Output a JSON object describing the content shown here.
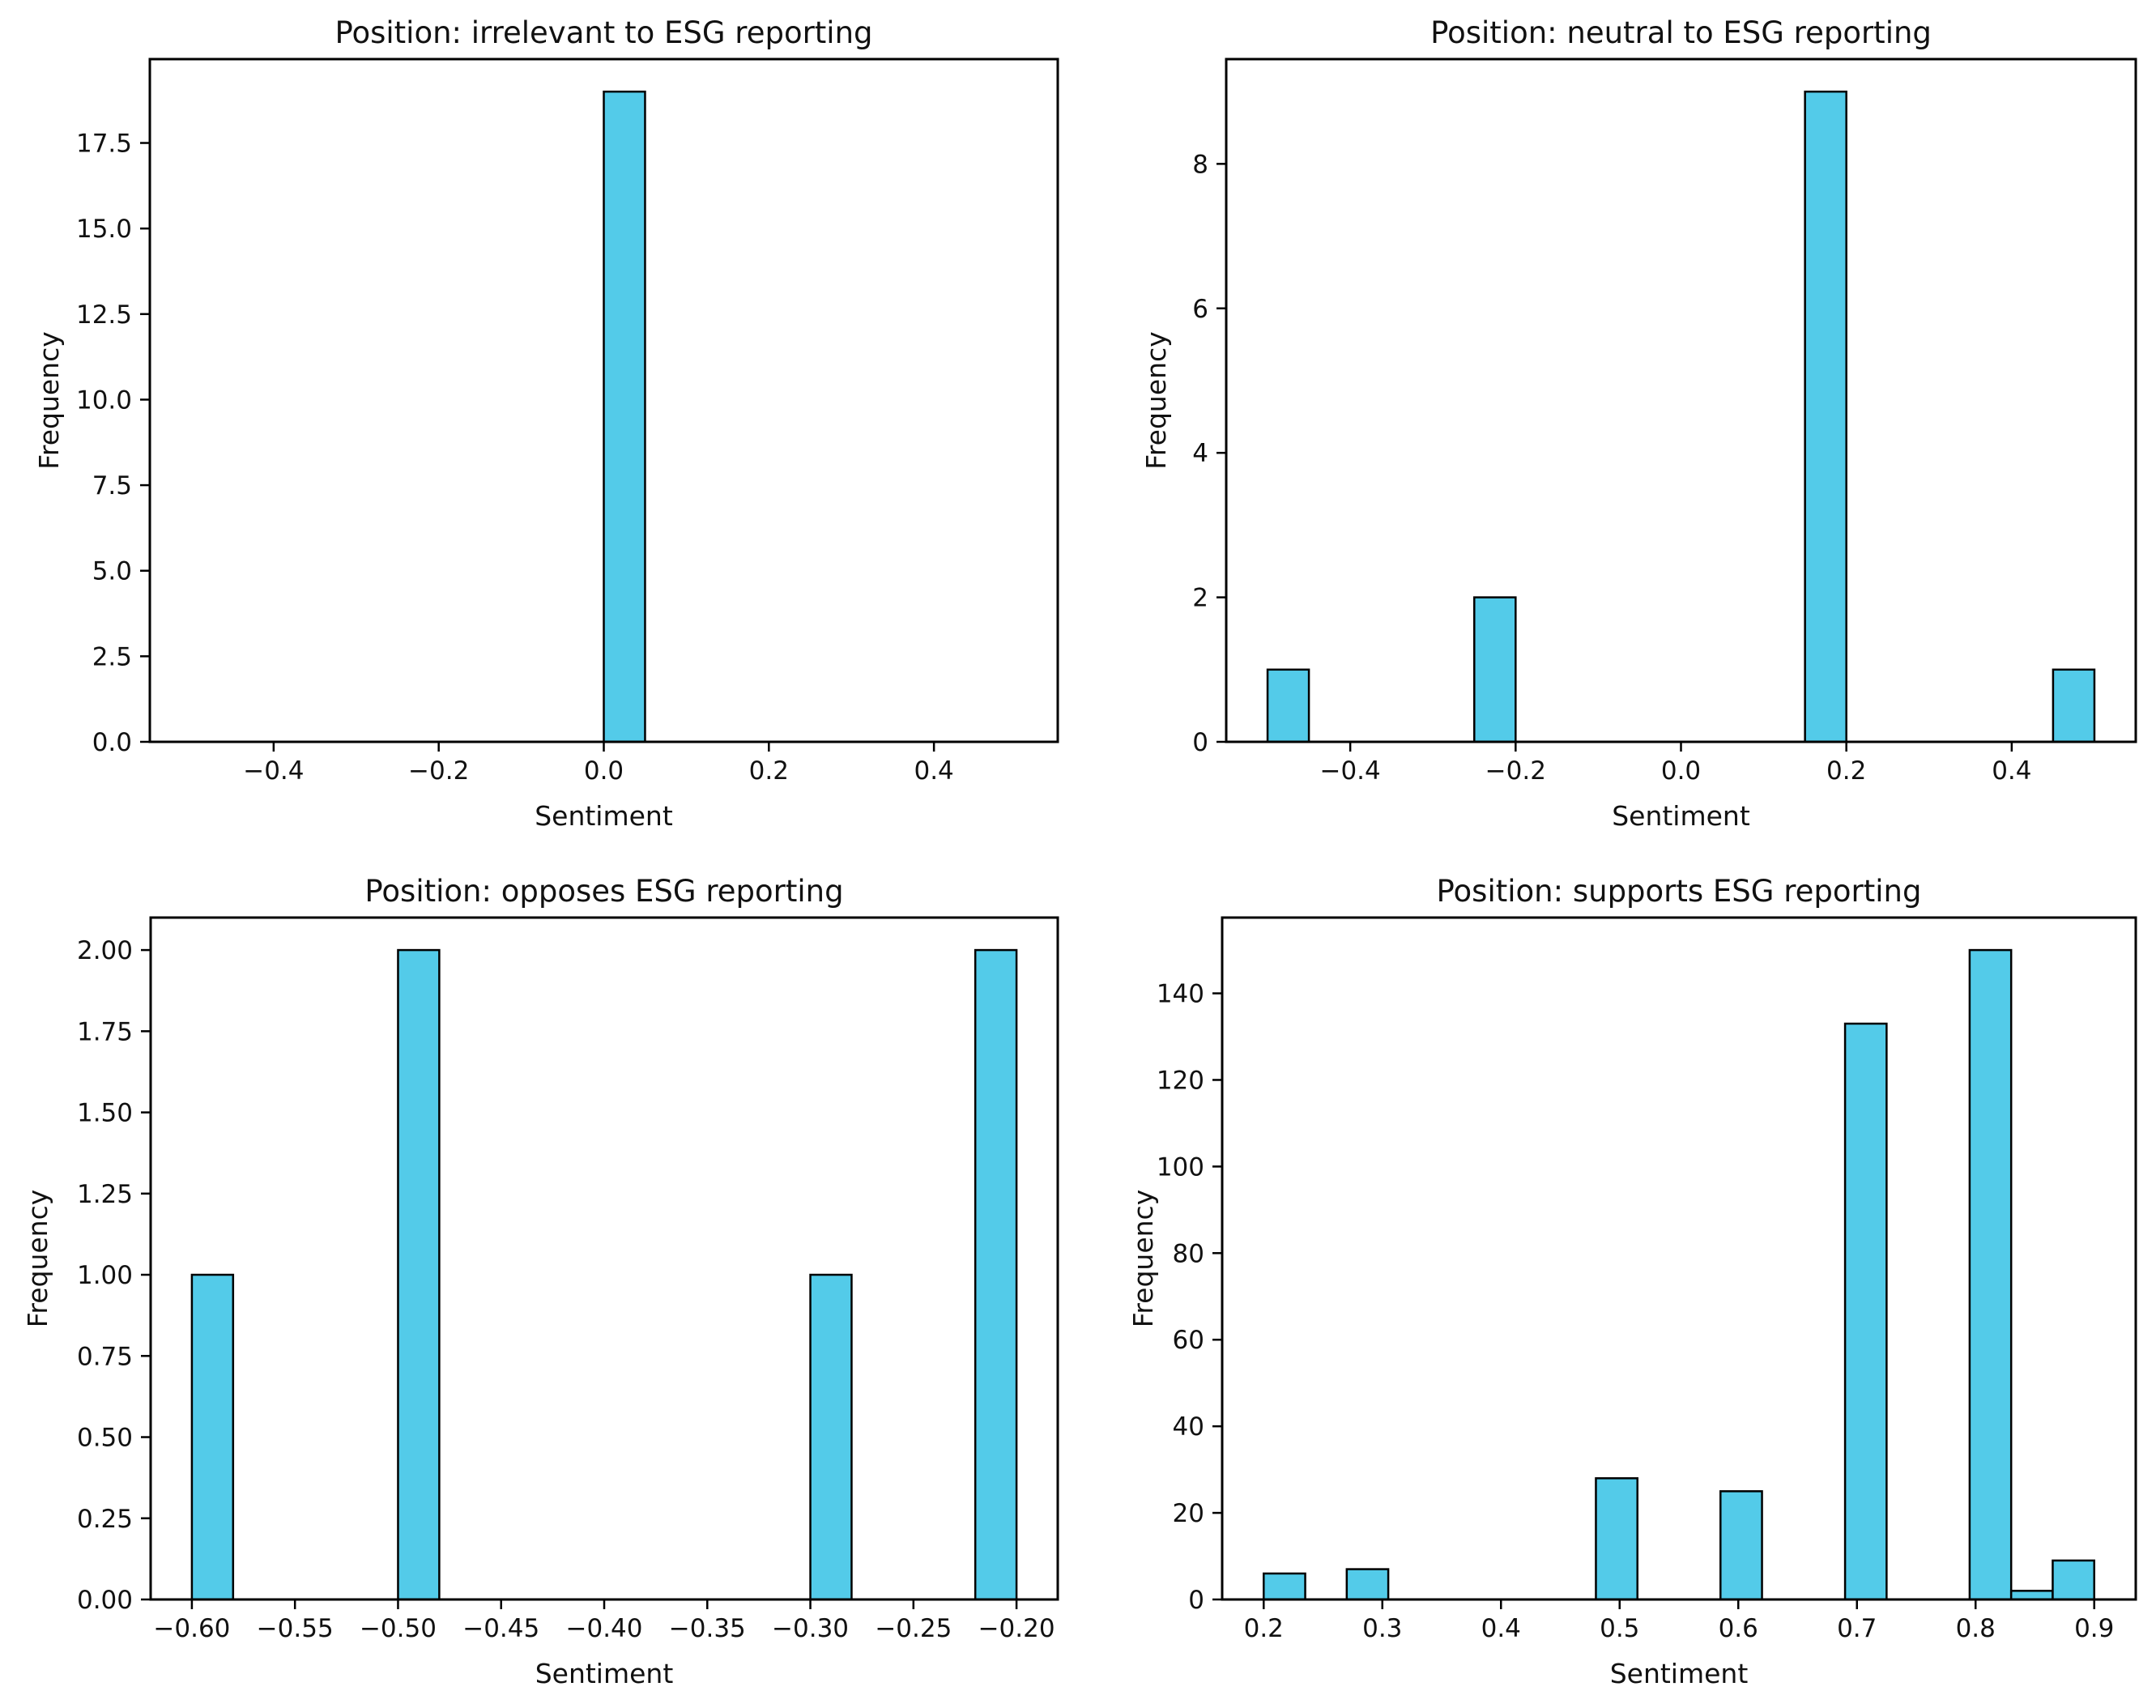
{
  "figure": {
    "background": "#ffffff",
    "style": {
      "bar_fill": "#53CBE9",
      "bar_edge": "#000000",
      "spine_color": "#000000",
      "text_color": "#111111"
    }
  },
  "chart_data": [
    {
      "type": "bar",
      "variant": "histogram",
      "title": "Position: irrelevant to ESG reporting",
      "xlabel": "Sentiment",
      "ylabel": "Frequency",
      "xlim": [
        -0.55,
        0.55
      ],
      "ylim": [
        0,
        19.95
      ],
      "grid": false,
      "legend": null,
      "xtick_values": [
        -0.4,
        -0.2,
        0.0,
        0.2,
        0.4
      ],
      "xtick_labels": [
        "−0.4",
        "−0.2",
        "0.0",
        "0.2",
        "0.4"
      ],
      "ytick_values": [
        0,
        2.5,
        5,
        7.5,
        10,
        12.5,
        15,
        17.5
      ],
      "ytick_labels": [
        "0.0",
        "2.5",
        "5.0",
        "7.5",
        "10.0",
        "12.5",
        "15.0",
        "17.5"
      ],
      "bins": [
        {
          "x0": 0.0,
          "x1": 0.05,
          "count": 19
        }
      ]
    },
    {
      "type": "bar",
      "variant": "histogram",
      "title": "Position: neutral to ESG reporting",
      "xlabel": "Sentiment",
      "ylabel": "Frequency",
      "xlim": [
        -0.55,
        0.55
      ],
      "ylim": [
        0,
        9.45
      ],
      "grid": false,
      "legend": null,
      "xtick_values": [
        -0.4,
        -0.2,
        0.0,
        0.2,
        0.4
      ],
      "xtick_labels": [
        "−0.4",
        "−0.2",
        "0.0",
        "0.2",
        "0.4"
      ],
      "ytick_values": [
        0,
        2,
        4,
        6,
        8
      ],
      "ytick_labels": [
        "0",
        "2",
        "4",
        "6",
        "8"
      ],
      "bins": [
        {
          "x0": -0.5,
          "x1": -0.45,
          "count": 1
        },
        {
          "x0": -0.25,
          "x1": -0.2,
          "count": 2
        },
        {
          "x0": 0.15,
          "x1": 0.2,
          "count": 9
        },
        {
          "x0": 0.45,
          "x1": 0.5,
          "count": 1
        }
      ]
    },
    {
      "type": "bar",
      "variant": "histogram",
      "title": "Position: opposes ESG reporting",
      "xlabel": "Sentiment",
      "ylabel": "Frequency",
      "xlim": [
        -0.62,
        -0.18
      ],
      "ylim": [
        0,
        2.1
      ],
      "grid": false,
      "legend": null,
      "xtick_values": [
        -0.6,
        -0.55,
        -0.5,
        -0.45,
        -0.4,
        -0.35,
        -0.3,
        -0.25,
        -0.2
      ],
      "xtick_labels": [
        "−0.60",
        "−0.55",
        "−0.50",
        "−0.45",
        "−0.40",
        "−0.35",
        "−0.30",
        "−0.25",
        "−0.20"
      ],
      "ytick_values": [
        0,
        0.25,
        0.5,
        0.75,
        1.0,
        1.25,
        1.5,
        1.75,
        2.0
      ],
      "ytick_labels": [
        "0.00",
        "0.25",
        "0.50",
        "0.75",
        "1.00",
        "1.25",
        "1.50",
        "1.75",
        "2.00"
      ],
      "bins": [
        {
          "x0": -0.6,
          "x1": -0.58,
          "count": 1
        },
        {
          "x0": -0.5,
          "x1": -0.48,
          "count": 2
        },
        {
          "x0": -0.3,
          "x1": -0.28,
          "count": 1
        },
        {
          "x0": -0.22,
          "x1": -0.2,
          "count": 2
        }
      ]
    },
    {
      "type": "bar",
      "variant": "histogram",
      "title": "Position: supports ESG reporting",
      "xlabel": "Sentiment",
      "ylabel": "Frequency",
      "xlim": [
        0.165,
        0.935
      ],
      "ylim": [
        0,
        157.5
      ],
      "grid": false,
      "legend": null,
      "xtick_values": [
        0.2,
        0.3,
        0.4,
        0.5,
        0.6,
        0.7,
        0.8,
        0.9
      ],
      "xtick_labels": [
        "0.2",
        "0.3",
        "0.4",
        "0.5",
        "0.6",
        "0.7",
        "0.8",
        "0.9"
      ],
      "ytick_values": [
        0,
        20,
        40,
        60,
        80,
        100,
        120,
        140
      ],
      "ytick_labels": [
        "0",
        "20",
        "40",
        "60",
        "80",
        "100",
        "120",
        "140"
      ],
      "bins": [
        {
          "x0": 0.2,
          "x1": 0.235,
          "count": 6
        },
        {
          "x0": 0.27,
          "x1": 0.305,
          "count": 7
        },
        {
          "x0": 0.48,
          "x1": 0.515,
          "count": 28
        },
        {
          "x0": 0.585,
          "x1": 0.62,
          "count": 25
        },
        {
          "x0": 0.69,
          "x1": 0.725,
          "count": 133
        },
        {
          "x0": 0.795,
          "x1": 0.83,
          "count": 150
        },
        {
          "x0": 0.83,
          "x1": 0.865,
          "count": 2
        },
        {
          "x0": 0.865,
          "x1": 0.9,
          "count": 9
        }
      ]
    }
  ]
}
